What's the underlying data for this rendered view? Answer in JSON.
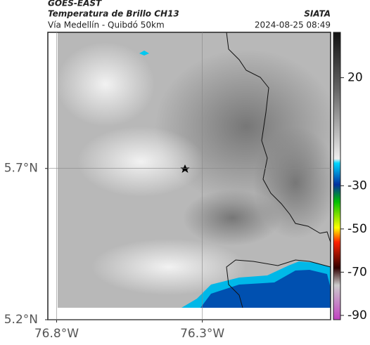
{
  "header": {
    "satellite": "GOES-EAST",
    "product": "Temperatura de Brillo CH13",
    "source": "SIATA",
    "route": "Vía Medellín - Quibdó 50km",
    "timestamp": "2024-08-25 08:49"
  },
  "map": {
    "xlim": [
      -76.83,
      -75.86
    ],
    "ylim": [
      5.2,
      6.15
    ],
    "xticks": [
      {
        "value": -76.8,
        "label": "76.8°W"
      },
      {
        "value": -76.3,
        "label": "76.3°W"
      }
    ],
    "yticks": [
      {
        "value": 5.7,
        "label": "5.7°N"
      },
      {
        "value": 5.2,
        "label": "5.2°N"
      }
    ]
  },
  "colorbar": {
    "lim": [
      -92,
      41
    ],
    "ticks": [
      20,
      -30,
      -50,
      -70,
      -90
    ]
  }
}
